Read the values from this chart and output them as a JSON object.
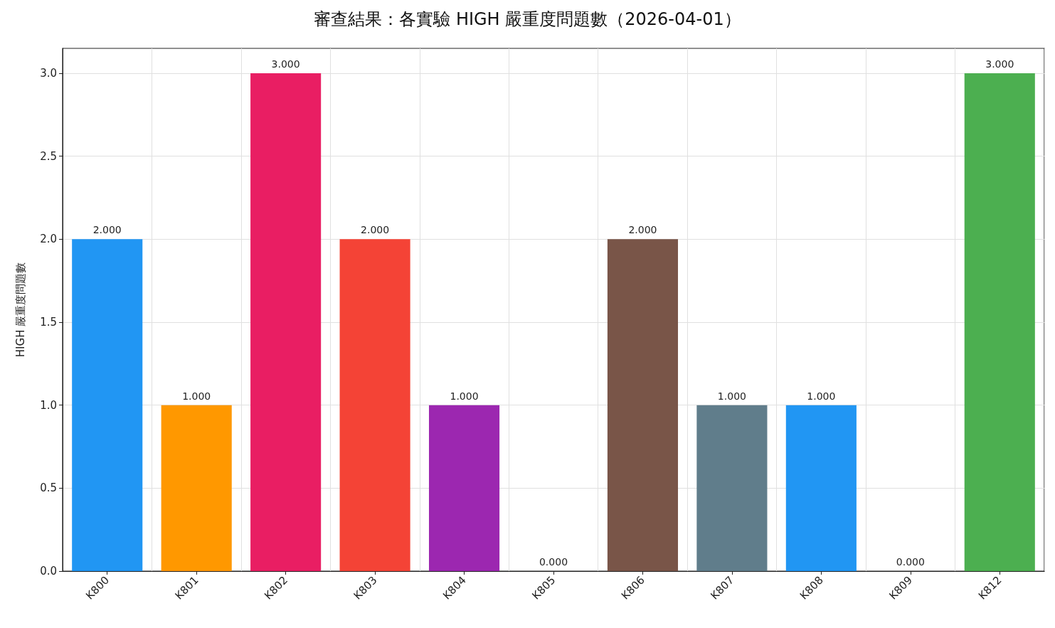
{
  "chart_data": {
    "type": "bar",
    "title": "審查結果：各實驗 HIGH 嚴重度問題數（2026-04-01）",
    "ylabel": "HIGH 嚴重度問題數",
    "categories": [
      "K800",
      "K801",
      "K802",
      "K803",
      "K804",
      "K805",
      "K806",
      "K807",
      "K808",
      "K809",
      "K812"
    ],
    "values": [
      2,
      1,
      3,
      2,
      1,
      0,
      2,
      1,
      1,
      0,
      3
    ],
    "colors": [
      "#2196f3",
      "#ff9800",
      "#e91e63",
      "#f44336",
      "#9c27b0",
      "#00bcd4",
      "#795548",
      "#607d8b",
      "#2196f3",
      "#8bc34a",
      "#4caf50"
    ],
    "value_labels": [
      "2.000",
      "1.000",
      "3.000",
      "2.000",
      "1.000",
      "0.000",
      "2.000",
      "1.000",
      "1.000",
      "0.000",
      "3.000"
    ],
    "ylim": [
      0,
      3.15
    ],
    "yticks": [
      {
        "value": 0,
        "label": "0.0"
      },
      {
        "value": 0.5,
        "label": "0.5"
      },
      {
        "value": 1,
        "label": "1.0"
      },
      {
        "value": 1.5,
        "label": "1.5"
      },
      {
        "value": 2,
        "label": "2.0"
      },
      {
        "value": 2.5,
        "label": "2.5"
      },
      {
        "value": 3,
        "label": "3.0"
      }
    ],
    "grid": true
  }
}
